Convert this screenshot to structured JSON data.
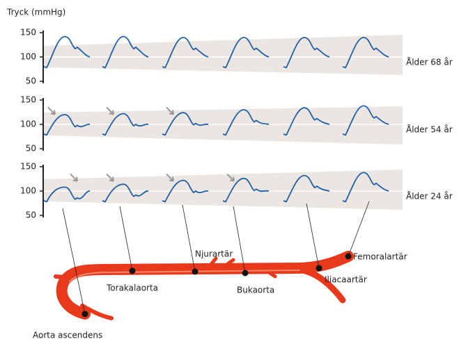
{
  "y_axis_label": "Tryck (mmHg)",
  "panels": [
    {
      "label": "Ålder 68 år",
      "ticks": [
        150,
        100,
        50
      ]
    },
    {
      "label": "Ålder 54 år",
      "ticks": [
        150,
        100,
        50
      ]
    },
    {
      "label": "Ålder 24 år",
      "ticks": [
        150,
        100,
        50
      ]
    }
  ],
  "arteries": [
    "Aorta ascendens",
    "Torakalaorta",
    "Njurartär",
    "Bukaorta",
    "Iliacaartär",
    "Femoralartär"
  ]
}
